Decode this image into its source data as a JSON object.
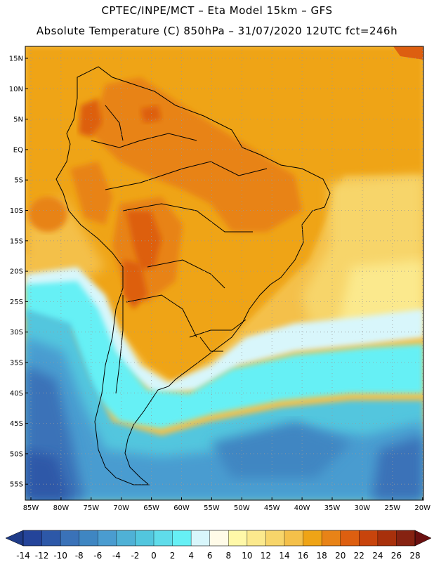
{
  "header": {
    "line1": "CPTEC/INPE/MCT –  Eta Model 15km – GFS",
    "line2": "Absolute Temperature (C) 850hPa – 31/07/2020 12UTC fct=246h"
  },
  "lat_labels": [
    "15N",
    "10N",
    "5N",
    "EQ",
    "5S",
    "10S",
    "15S",
    "20S",
    "25S",
    "30S",
    "35S",
    "40S",
    "45S",
    "50S",
    "55S"
  ],
  "lon_labels": [
    "85W",
    "80W",
    "75W",
    "70W",
    "65W",
    "60W",
    "55W",
    "50W",
    "45W",
    "40W",
    "35W",
    "30W",
    "25W",
    "20W"
  ],
  "colorbar": {
    "labels": [
      "-14",
      "-12",
      "-10",
      "-8",
      "-6",
      "-4",
      "-2",
      "0",
      "2",
      "4",
      "6",
      "8",
      "10",
      "12",
      "14",
      "16",
      "18",
      "20",
      "22",
      "24",
      "26",
      "28"
    ],
    "colors": [
      "#24449a",
      "#2d58a8",
      "#3a72b8",
      "#3f86c2",
      "#4a9cd0",
      "#4fb1d6",
      "#52c6de",
      "#5fdcea",
      "#66f0f5",
      "#d8f6fb",
      "#fffbe8",
      "#fff8a8",
      "#fbe98d",
      "#f7d56a",
      "#f4c04a",
      "#efa416",
      "#e88317",
      "#dd5f10",
      "#c8440c",
      "#a8300b",
      "#862211"
    ],
    "left_arrow_color": "#1f3b88",
    "right_arrow_color": "#6a1010"
  }
}
